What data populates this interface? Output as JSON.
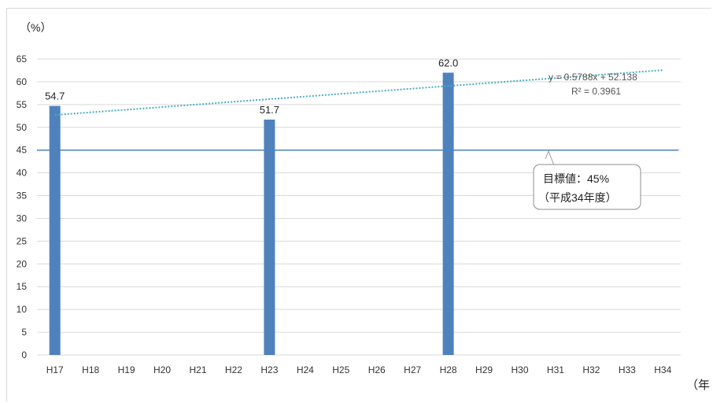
{
  "chart_data": {
    "type": "bar",
    "ylabel_unit": "（%）",
    "xlabel_unit": "（年",
    "categories": [
      "H17",
      "H18",
      "H19",
      "H20",
      "H21",
      "H22",
      "H23",
      "H24",
      "H25",
      "H26",
      "H27",
      "H28",
      "H29",
      "H30",
      "H31",
      "H32",
      "H33",
      "H34"
    ],
    "series": [
      {
        "values": [
          54.7,
          null,
          null,
          null,
          null,
          null,
          51.7,
          null,
          null,
          null,
          null,
          62.0,
          null,
          null,
          null,
          null,
          null,
          null
        ]
      }
    ],
    "data_labels": [
      "54.7",
      "51.7",
      "62.0"
    ],
    "ylim": [
      0,
      65
    ],
    "yticks": [
      0,
      5,
      10,
      15,
      20,
      25,
      30,
      35,
      40,
      45,
      50,
      55,
      60,
      65
    ],
    "grid": true,
    "target": {
      "value": 45,
      "callout_line1": "目標値：45%",
      "callout_line2": "（平成34年度）"
    },
    "trendline": {
      "slope": 0.5788,
      "intercept": 52.138,
      "equation": "y = 0.5788x + 52.138",
      "r2": "R² = 0.3961"
    },
    "colors": {
      "bar": "#4f81bd",
      "grid": "#d9d9d9",
      "target": "#4f81bd",
      "trend": "#4bacc6"
    }
  }
}
